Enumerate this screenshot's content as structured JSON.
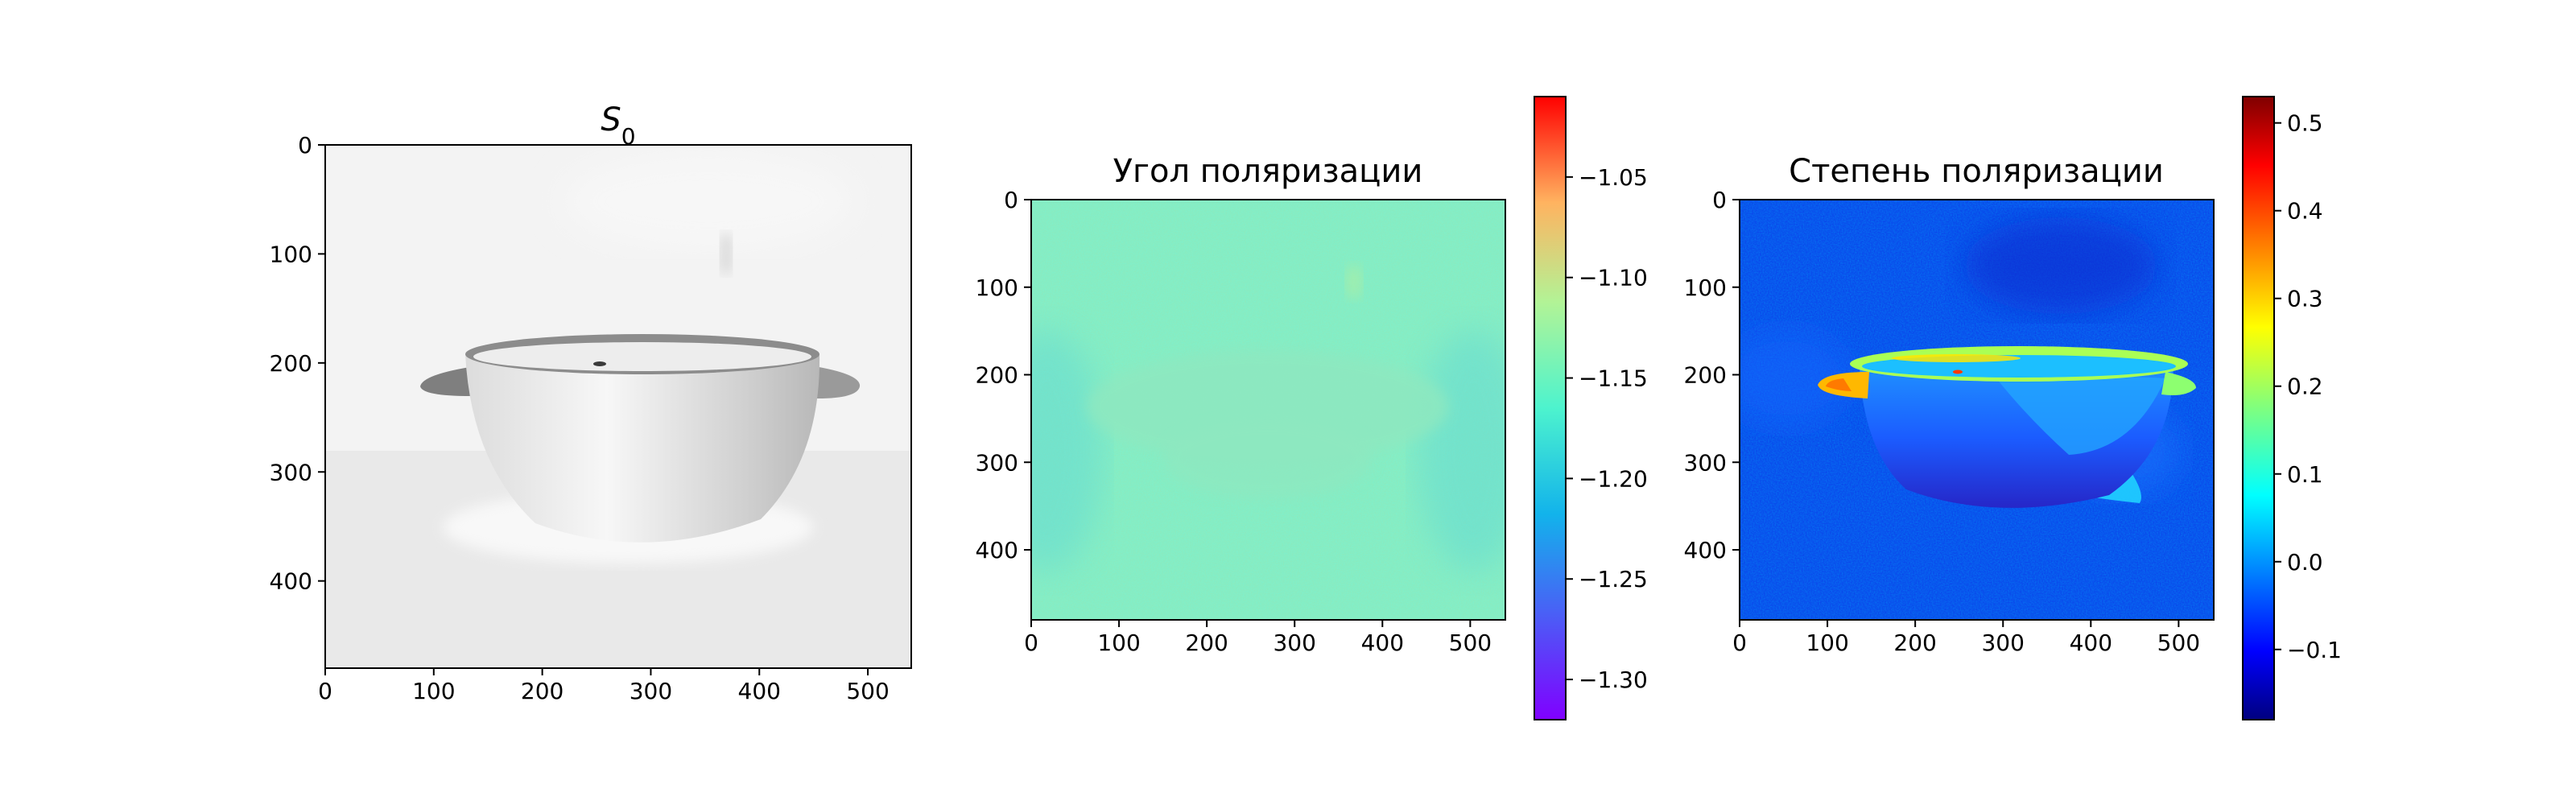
{
  "chart_data": [
    {
      "type": "heatmap",
      "title": "S",
      "title_subscript": "0",
      "colormap": "gray",
      "xlim": [
        0,
        540
      ],
      "ylim": [
        480,
        0
      ],
      "xticks": [
        0,
        100,
        200,
        300,
        400,
        500
      ],
      "yticks": [
        0,
        100,
        200,
        300,
        400
      ],
      "grid": false,
      "content": "grayscale photograph of a white ceramic bowl with two handles on a light background"
    },
    {
      "type": "heatmap",
      "title": "Угол поляризации",
      "colormap": "rainbow",
      "xlim": [
        0,
        540
      ],
      "ylim": [
        480,
        0
      ],
      "xticks": [
        0,
        100,
        200,
        300,
        400,
        500
      ],
      "yticks": [
        0,
        100,
        200,
        300,
        400
      ],
      "grid": false,
      "value_typical": -1.19,
      "colorbar": {
        "min": -1.32,
        "max": -1.01,
        "ticks": [
          -1.05,
          -1.1,
          -1.15,
          -1.2,
          -1.25,
          -1.3
        ],
        "tick_labels": [
          "−1.05",
          "−1.10",
          "−1.15",
          "−1.20",
          "−1.25",
          "−1.30"
        ]
      }
    },
    {
      "type": "heatmap",
      "title": "Степень поляризации",
      "colormap": "jet",
      "xlim": [
        0,
        540
      ],
      "ylim": [
        480,
        0
      ],
      "xticks": [
        0,
        100,
        200,
        300,
        400,
        500
      ],
      "yticks": [
        0,
        100,
        200,
        300,
        400
      ],
      "grid": false,
      "value_background": -0.07,
      "value_bowl_rim_max": 0.5,
      "colorbar": {
        "min": -0.18,
        "max": 0.53,
        "ticks": [
          0.5,
          0.4,
          0.3,
          0.2,
          0.1,
          0.0,
          -0.1
        ],
        "tick_labels": [
          "0.5",
          "0.4",
          "0.3",
          "0.2",
          "0.1",
          "0.0",
          "−0.1"
        ]
      }
    }
  ]
}
